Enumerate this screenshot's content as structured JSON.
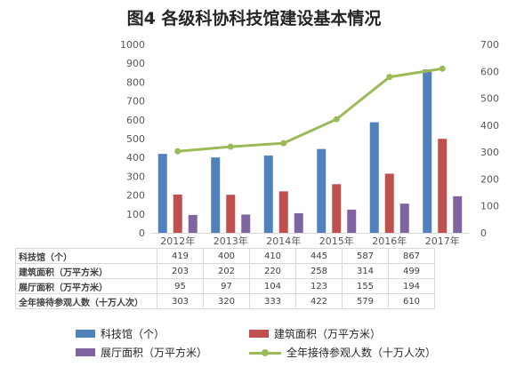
{
  "chart_data": {
    "type": "bar",
    "title": "图4 各级科协科技馆建设基本情况",
    "categories": [
      "2012年",
      "2013年",
      "2014年",
      "2015年",
      "2016年",
      "2017年"
    ],
    "series": [
      {
        "name": "科技馆（个）",
        "kind": "bar",
        "axis": "left",
        "color": "#4f81bd",
        "values": [
          419,
          400,
          410,
          445,
          587,
          867
        ]
      },
      {
        "name": "建筑面积（万平方米）",
        "kind": "bar",
        "axis": "left",
        "color": "#c0504d",
        "values": [
          203,
          202,
          220,
          258,
          314,
          499
        ]
      },
      {
        "name": "展厅面积（万平方米）",
        "kind": "bar",
        "axis": "left",
        "color": "#8064a2",
        "values": [
          95,
          97,
          104,
          123,
          155,
          194
        ]
      },
      {
        "name": "全年接待参观人数（十万人次）",
        "kind": "line",
        "axis": "right",
        "color": "#9bbb59",
        "values": [
          303,
          320,
          333,
          422,
          579,
          610
        ]
      }
    ],
    "y_left": {
      "range": [
        0,
        1000
      ],
      "ticks": [
        "0",
        "100",
        "200",
        "300",
        "400",
        "500",
        "600",
        "700",
        "800",
        "900",
        "1000"
      ]
    },
    "y_right": {
      "range": [
        0,
        700
      ],
      "ticks": [
        "0",
        "100",
        "200",
        "300",
        "400",
        "500",
        "600",
        "700"
      ]
    },
    "grid": false,
    "legend_position": "bottom",
    "data_table": true
  }
}
